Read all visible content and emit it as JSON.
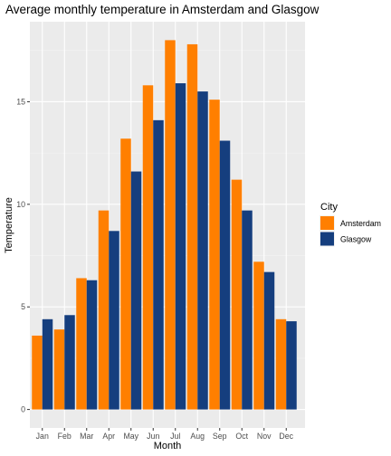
{
  "chart_data": {
    "type": "bar",
    "title": "Average monthly temperature in Amsterdam and Glasgow",
    "xlabel": "Month",
    "ylabel": "Temperature",
    "categories": [
      "Jan",
      "Feb",
      "Mar",
      "Apr",
      "May",
      "Jun",
      "Jul",
      "Aug",
      "Sep",
      "Oct",
      "Nov",
      "Dec"
    ],
    "series": [
      {
        "name": "Amsterdam",
        "color": "#FF7F00",
        "values": [
          3.6,
          3.9,
          6.4,
          9.7,
          13.2,
          15.8,
          18.0,
          17.8,
          15.1,
          11.2,
          7.2,
          4.4
        ]
      },
      {
        "name": "Glasgow",
        "color": "#153E7E",
        "values": [
          4.4,
          4.6,
          6.3,
          8.7,
          11.6,
          14.1,
          15.9,
          15.5,
          13.1,
          9.7,
          6.7,
          4.3
        ]
      }
    ],
    "ylim": [
      -0.9,
      18.9
    ],
    "yticks": [
      0,
      5,
      10,
      15
    ],
    "ytick_labels": [
      "0",
      "5",
      "10",
      "15"
    ],
    "grid": true,
    "legend": {
      "title": "City",
      "position": "right"
    }
  }
}
